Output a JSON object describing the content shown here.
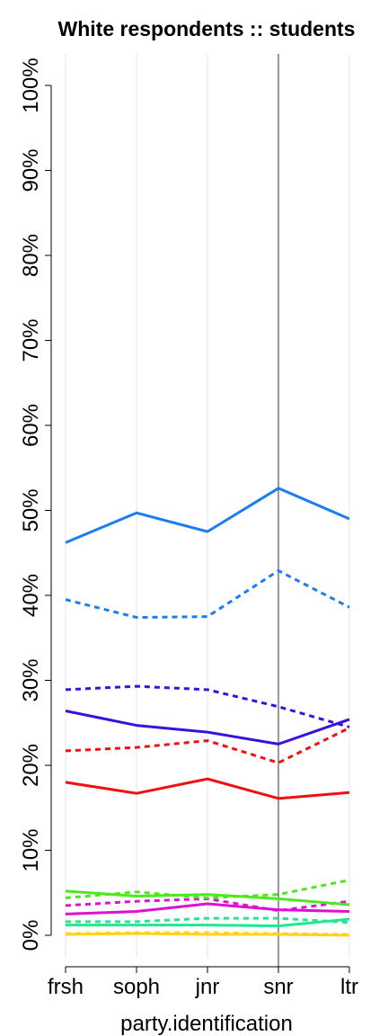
{
  "chart_data": {
    "type": "line",
    "title": "White respondents :: students",
    "xlabel": "party.identification",
    "ylabel": "",
    "categories": [
      "frsh",
      "soph",
      "jnr",
      "snr",
      "ltr"
    ],
    "ylim": [
      0,
      100
    ],
    "y_ticks": [
      "0%",
      "10%",
      "20%",
      "30%",
      "40%",
      "50%",
      "60%",
      "70%",
      "80%",
      "90%",
      "100%"
    ],
    "grid": "vertical",
    "vline_category": "snr",
    "series": [
      {
        "color": "#1a7ef0",
        "style": "solid",
        "values": [
          46.2,
          49.7,
          47.5,
          52.6,
          49.0
        ]
      },
      {
        "color": "#1a7ef0",
        "style": "dotted",
        "values": [
          39.5,
          37.4,
          37.5,
          42.9,
          38.6
        ]
      },
      {
        "color": "#3a10e0",
        "style": "dotted",
        "values": [
          28.9,
          29.3,
          28.9,
          26.9,
          24.5
        ]
      },
      {
        "color": "#3a10e0",
        "style": "solid",
        "values": [
          26.4,
          24.7,
          23.9,
          22.5,
          25.4
        ]
      },
      {
        "color": "#f01010",
        "style": "dotted",
        "values": [
          21.7,
          22.1,
          22.9,
          20.3,
          24.4
        ]
      },
      {
        "color": "#f01010",
        "style": "solid",
        "values": [
          18.0,
          16.7,
          18.4,
          16.1,
          16.8
        ]
      },
      {
        "color": "#4ee81e",
        "style": "dotted",
        "values": [
          4.4,
          5.1,
          4.4,
          4.8,
          6.5
        ]
      },
      {
        "color": "#4ee81e",
        "style": "solid",
        "values": [
          5.2,
          4.6,
          4.8,
          4.3,
          3.6
        ]
      },
      {
        "color": "#e010d0",
        "style": "dotted",
        "values": [
          3.5,
          4.0,
          4.3,
          2.9,
          4.0
        ]
      },
      {
        "color": "#e010d0",
        "style": "solid",
        "values": [
          2.5,
          2.8,
          3.7,
          3.0,
          2.8
        ]
      },
      {
        "color": "#20e890",
        "style": "dotted",
        "values": [
          1.6,
          1.6,
          2.0,
          2.0,
          1.5
        ]
      },
      {
        "color": "#20e890",
        "style": "solid",
        "values": [
          1.2,
          1.2,
          1.2,
          1.1,
          1.9
        ]
      },
      {
        "color": "#ffd21e",
        "style": "dotted",
        "values": [
          0.2,
          0.3,
          0.3,
          0.2,
          0.1
        ]
      },
      {
        "color": "#ffd21e",
        "style": "solid",
        "values": [
          0.1,
          0.2,
          0.1,
          0.1,
          0.0
        ]
      }
    ]
  }
}
